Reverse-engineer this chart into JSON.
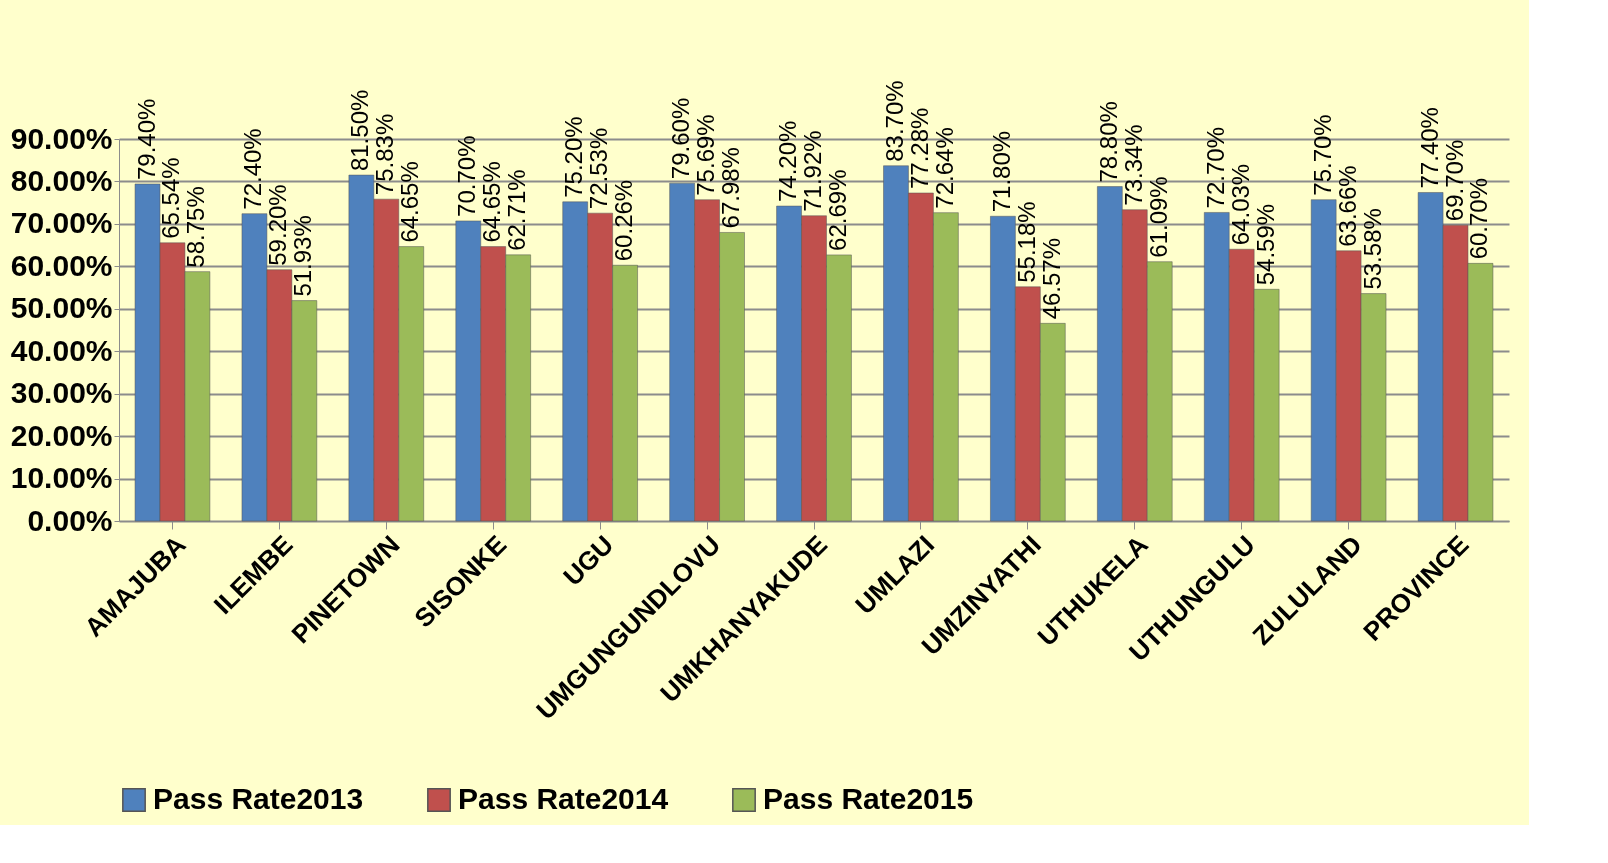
{
  "chart_data": {
    "type": "bar",
    "categories": [
      "AMAJUBA",
      "ILEMBE",
      "PINETOWN",
      "SISONKE",
      "UGU",
      "UMGUNGUNDLOVU",
      "UMKHANYAKUDE",
      "UMLAZI",
      "UMZINYATHI",
      "UTHUKELA",
      "UTHUNGULU",
      "ZULULAND",
      "PROVINCE"
    ],
    "series": [
      {
        "name": "Pass Rate2013",
        "color": "#4f81bd",
        "values": [
          79.4,
          72.4,
          81.5,
          70.7,
          75.2,
          79.6,
          74.2,
          83.7,
          71.8,
          78.8,
          72.7,
          75.7,
          77.4
        ],
        "value_labels": [
          "79.40%",
          "72.40%",
          "81.50%",
          "70.70%",
          "75.20%",
          "79.60%",
          "74.20%",
          "83.70%",
          "71.80%",
          "78.80%",
          "72.70%",
          "75.70%",
          "77.40%"
        ]
      },
      {
        "name": "Pass Rate2014",
        "color": "#c0504d",
        "values": [
          65.54,
          59.2,
          75.83,
          64.65,
          72.53,
          75.69,
          71.92,
          77.28,
          55.18,
          73.34,
          64.03,
          63.66,
          69.7
        ],
        "value_labels": [
          "65.54%",
          "59.20%",
          "75.83%",
          "64.65%",
          "72.53%",
          "75.69%",
          "71.92%",
          "77.28%",
          "55.18%",
          "73.34%",
          "64.03%",
          "63.66%",
          "69.70%"
        ]
      },
      {
        "name": "Pass Rate2015",
        "color": "#9bbb59",
        "values": [
          58.75,
          51.93,
          64.65,
          62.71,
          60.26,
          67.98,
          62.69,
          72.64,
          46.57,
          61.09,
          54.59,
          53.58,
          60.7
        ],
        "value_labels": [
          "58.75%",
          "51.93%",
          "64.65%",
          "62.71%",
          "60.26%",
          "67.98%",
          "62.69%",
          "72.64%",
          "46.57%",
          "61.09%",
          "54.59%",
          "53.58%",
          "60.70%"
        ]
      }
    ],
    "ylim": [
      0,
      90
    ],
    "yticks": [
      {
        "value": 0,
        "label": "0.00%"
      },
      {
        "value": 10,
        "label": "10.00%"
      },
      {
        "value": 20,
        "label": "20.00%"
      },
      {
        "value": 30,
        "label": "30.00%"
      },
      {
        "value": 40,
        "label": "40.00%"
      },
      {
        "value": 50,
        "label": "50.00%"
      },
      {
        "value": 60,
        "label": "60.00%"
      },
      {
        "value": 70,
        "label": "70.00%"
      },
      {
        "value": 80,
        "label": "80.00%"
      },
      {
        "value": 90,
        "label": "90.00%"
      }
    ],
    "grid": "y",
    "legend": "bottom"
  }
}
